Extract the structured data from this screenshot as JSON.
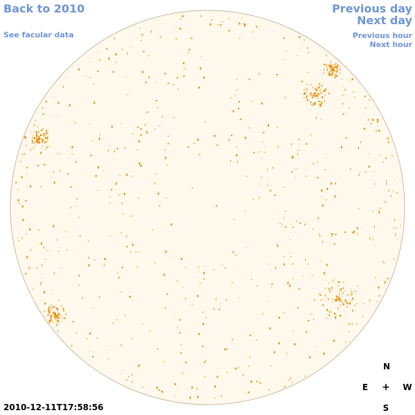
{
  "nav": {
    "back": "Back to 2010",
    "facular": "See facular data",
    "previous_day": "Previous day",
    "next_day": "Next day",
    "previous_hour": "Previous hour",
    "next_hour": "Next hour"
  },
  "timestamp": "2010-12-11T17:58:56",
  "compass": {
    "north": "N",
    "south": "S",
    "east": "E",
    "west": "W",
    "center": "+"
  },
  "colors": {
    "disk_fill": "#fef9ec",
    "disk_stroke": "#c8b9a0",
    "facula": "#e68a00",
    "link": "#6f95d6"
  },
  "icons": {
    "compass_center": "crosshair-icon",
    "disk": "solar-disk"
  }
}
